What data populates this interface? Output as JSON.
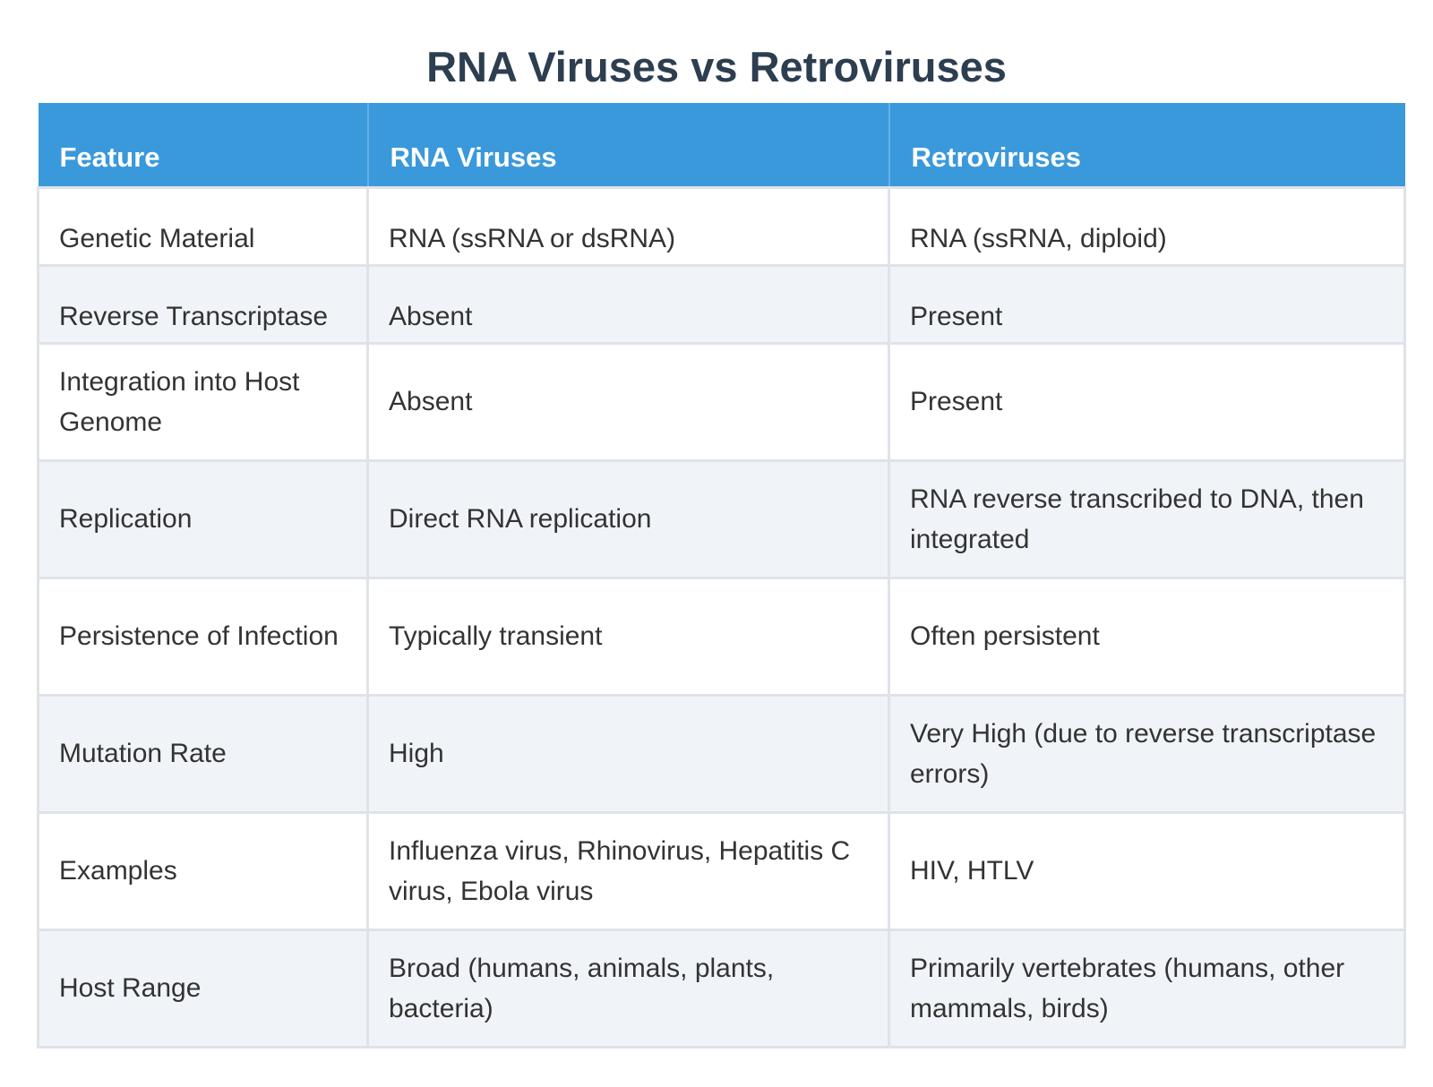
{
  "title": "RNA Viruses vs Retroviruses",
  "table": {
    "headers": [
      "Feature",
      "RNA Viruses",
      "Retroviruses"
    ],
    "rows": [
      [
        "Genetic Material",
        "RNA (ssRNA or dsRNA)",
        "RNA (ssRNA, diploid)"
      ],
      [
        "Reverse Transcriptase",
        "Absent",
        "Present"
      ],
      [
        "Integration into Host Genome",
        "Absent",
        "Present"
      ],
      [
        "Replication",
        "Direct RNA replication",
        "RNA reverse transcribed to DNA, then integrated"
      ],
      [
        "Persistence of Infection",
        "Typically transient",
        "Often persistent"
      ],
      [
        "Mutation Rate",
        "High",
        "Very High (due to reverse transcriptase errors)"
      ],
      [
        "Examples",
        "Influenza virus, Rhinovirus, Hepatitis C virus, Ebola virus",
        "HIV, HTLV"
      ],
      [
        "Host Range",
        "Broad (humans, animals, plants, bacteria)",
        "Primarily vertebrates (humans, other mammals, birds)"
      ]
    ]
  },
  "colors": {
    "header_bg": "#3a99db",
    "title_text": "#2c3e50",
    "stripe_bg": "#f0f4f9"
  }
}
